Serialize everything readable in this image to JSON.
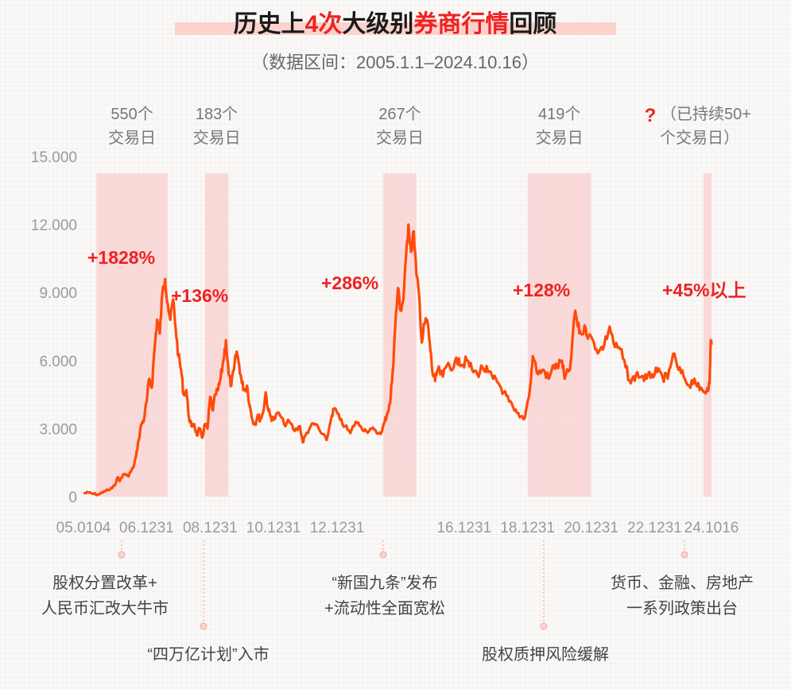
{
  "title": {
    "prefix": "历史上",
    "count": "4次",
    "middle": "大级别",
    "highlight": "券商行情",
    "suffix": "回顾"
  },
  "subtitle": "（数据区间：2005.1.1–2024.10.16）",
  "colors": {
    "line": "#ff4a0a",
    "shade": "#f9cfcf",
    "accent": "#ee2222",
    "title_underline": "#fbd3cc"
  },
  "chart_data": {
    "type": "line",
    "ylim": [
      0,
      15000
    ],
    "yticks": [
      0,
      3000,
      6000,
      9000,
      12000,
      15000
    ],
    "ytick_labels": [
      "0",
      "3.000",
      "6.000",
      "9.000",
      "12.000",
      "15.000"
    ],
    "xlim": [
      "2005-01-04",
      "2024-10-16"
    ],
    "xticks": [
      "2005-01-04",
      "2006-12-31",
      "2008-12-31",
      "2010-12-31",
      "2012-12-31",
      "2014-12-31",
      "2016-12-31",
      "2018-12-31",
      "2020-12-31",
      "2022-12-31",
      "2024-10-16"
    ],
    "xtick_labels": [
      "05.0104",
      "06.1231",
      "08.1231",
      "10.1231",
      "12.1231",
      "16.1231",
      "18.1231",
      "20.1231",
      "22.1231",
      "24.1016"
    ],
    "xtick_label_dates": [
      "2005-01-04",
      "2006-12-31",
      "2008-12-31",
      "2010-12-31",
      "2012-12-31",
      "2016-12-31",
      "2018-12-31",
      "2020-12-31",
      "2022-12-31",
      "2024-10-16"
    ],
    "series": [
      {
        "points": [
          [
            "2005-01-04",
            150
          ],
          [
            "2005-03-01",
            180
          ],
          [
            "2005-05-01",
            120
          ],
          [
            "2005-07-01",
            100
          ],
          [
            "2005-09-01",
            250
          ],
          [
            "2005-11-01",
            300
          ],
          [
            "2006-01-01",
            500
          ],
          [
            "2006-02-01",
            850
          ],
          [
            "2006-03-01",
            700
          ],
          [
            "2006-04-01",
            950
          ],
          [
            "2006-05-01",
            1000
          ],
          [
            "2006-06-01",
            900
          ],
          [
            "2006-07-01",
            1100
          ],
          [
            "2006-08-01",
            1300
          ],
          [
            "2006-09-01",
            1800
          ],
          [
            "2006-10-01",
            2500
          ],
          [
            "2006-11-01",
            3200
          ],
          [
            "2006-12-01",
            3400
          ],
          [
            "2007-01-01",
            4200
          ],
          [
            "2007-02-01",
            5200
          ],
          [
            "2007-03-01",
            4800
          ],
          [
            "2007-04-01",
            6500
          ],
          [
            "2007-05-01",
            7800
          ],
          [
            "2007-06-01",
            7200
          ],
          [
            "2007-07-01",
            9000
          ],
          [
            "2007-08-01",
            9600
          ],
          [
            "2007-09-01",
            8500
          ],
          [
            "2007-10-01",
            7800
          ],
          [
            "2007-11-01",
            8700
          ],
          [
            "2007-12-01",
            7400
          ],
          [
            "2008-01-01",
            6200
          ],
          [
            "2008-02-01",
            5600
          ],
          [
            "2008-03-01",
            4500
          ],
          [
            "2008-04-01",
            4700
          ],
          [
            "2008-05-01",
            3500
          ],
          [
            "2008-06-01",
            3100
          ],
          [
            "2008-07-01",
            3200
          ],
          [
            "2008-08-01",
            2700
          ],
          [
            "2008-09-01",
            3000
          ],
          [
            "2008-10-01",
            2600
          ],
          [
            "2008-11-01",
            3200
          ],
          [
            "2008-12-01",
            3000
          ],
          [
            "2009-01-01",
            4400
          ],
          [
            "2009-02-01",
            3800
          ],
          [
            "2009-03-01",
            4500
          ],
          [
            "2009-04-01",
            4700
          ],
          [
            "2009-05-01",
            5200
          ],
          [
            "2009-06-01",
            6000
          ],
          [
            "2009-07-01",
            6900
          ],
          [
            "2009-08-01",
            5400
          ],
          [
            "2009-09-01",
            4900
          ],
          [
            "2009-10-01",
            5600
          ],
          [
            "2009-11-01",
            6400
          ],
          [
            "2009-12-01",
            5800
          ],
          [
            "2010-01-01",
            5000
          ],
          [
            "2010-02-01",
            4700
          ],
          [
            "2010-03-01",
            4900
          ],
          [
            "2010-04-01",
            4000
          ],
          [
            "2010-05-01",
            3400
          ],
          [
            "2010-06-01",
            3200
          ],
          [
            "2010-07-01",
            3600
          ],
          [
            "2010-08-01",
            3400
          ],
          [
            "2010-09-01",
            3700
          ],
          [
            "2010-10-01",
            4600
          ],
          [
            "2010-11-01",
            3800
          ],
          [
            "2010-12-01",
            3500
          ],
          [
            "2011-01-01",
            3400
          ],
          [
            "2011-03-01",
            3700
          ],
          [
            "2011-05-01",
            3200
          ],
          [
            "2011-07-01",
            3300
          ],
          [
            "2011-09-01",
            2900
          ],
          [
            "2011-11-01",
            3100
          ],
          [
            "2011-12-01",
            2400
          ],
          [
            "2012-01-01",
            2700
          ],
          [
            "2012-03-01",
            3100
          ],
          [
            "2012-05-01",
            3200
          ],
          [
            "2012-07-01",
            2800
          ],
          [
            "2012-09-01",
            2500
          ],
          [
            "2012-11-01",
            3600
          ],
          [
            "2012-12-01",
            3900
          ],
          [
            "2013-02-01",
            3400
          ],
          [
            "2013-04-01",
            3100
          ],
          [
            "2013-06-01",
            2800
          ],
          [
            "2013-08-01",
            3300
          ],
          [
            "2013-10-01",
            3100
          ],
          [
            "2013-12-01",
            2900
          ],
          [
            "2014-02-01",
            3000
          ],
          [
            "2014-04-01",
            2800
          ],
          [
            "2014-06-01",
            2900
          ],
          [
            "2014-07-01",
            3300
          ],
          [
            "2014-08-01",
            3700
          ],
          [
            "2014-09-01",
            4100
          ],
          [
            "2014-10-01",
            5500
          ],
          [
            "2014-11-01",
            7600
          ],
          [
            "2014-12-01",
            9200
          ],
          [
            "2015-01-01",
            8200
          ],
          [
            "2015-02-01",
            8700
          ],
          [
            "2015-03-01",
            10400
          ],
          [
            "2015-04-01",
            12000
          ],
          [
            "2015-05-01",
            10800
          ],
          [
            "2015-06-01",
            11700
          ],
          [
            "2015-07-01",
            9800
          ],
          [
            "2015-08-01",
            8900
          ],
          [
            "2015-09-01",
            6800
          ],
          [
            "2015-10-01",
            7600
          ],
          [
            "2015-11-01",
            7800
          ],
          [
            "2015-12-01",
            6800
          ],
          [
            "2016-01-01",
            5500
          ],
          [
            "2016-02-01",
            5100
          ],
          [
            "2016-03-01",
            5600
          ],
          [
            "2016-05-01",
            5300
          ],
          [
            "2016-07-01",
            5900
          ],
          [
            "2016-09-01",
            5700
          ],
          [
            "2016-11-01",
            6100
          ],
          [
            "2016-12-01",
            5800
          ],
          [
            "2017-02-01",
            6000
          ],
          [
            "2017-04-01",
            5600
          ],
          [
            "2017-06-01",
            5400
          ],
          [
            "2017-08-01",
            5700
          ],
          [
            "2017-10-01",
            5500
          ],
          [
            "2017-12-01",
            5200
          ],
          [
            "2018-02-01",
            5000
          ],
          [
            "2018-04-01",
            4600
          ],
          [
            "2018-06-01",
            4200
          ],
          [
            "2018-08-01",
            3800
          ],
          [
            "2018-10-01",
            3500
          ],
          [
            "2018-12-01",
            3500
          ],
          [
            "2019-02-01",
            4900
          ],
          [
            "2019-03-01",
            6200
          ],
          [
            "2019-05-01",
            5400
          ],
          [
            "2019-07-01",
            5600
          ],
          [
            "2019-09-01",
            5200
          ],
          [
            "2019-11-01",
            5800
          ],
          [
            "2019-12-01",
            5700
          ],
          [
            "2020-02-01",
            6000
          ],
          [
            "2020-03-01",
            5200
          ],
          [
            "2020-05-01",
            5600
          ],
          [
            "2020-07-01",
            8200
          ],
          [
            "2020-08-01",
            7500
          ],
          [
            "2020-09-01",
            7200
          ],
          [
            "2020-11-01",
            7400
          ],
          [
            "2020-12-01",
            7100
          ],
          [
            "2021-02-01",
            6800
          ],
          [
            "2021-04-01",
            6400
          ],
          [
            "2021-06-01",
            6700
          ],
          [
            "2021-08-01",
            7500
          ],
          [
            "2021-10-01",
            6600
          ],
          [
            "2021-12-01",
            6500
          ],
          [
            "2022-02-01",
            5700
          ],
          [
            "2022-04-01",
            5000
          ],
          [
            "2022-06-01",
            5400
          ],
          [
            "2022-08-01",
            5300
          ],
          [
            "2022-10-01",
            5200
          ],
          [
            "2022-12-01",
            5400
          ],
          [
            "2023-02-01",
            5500
          ],
          [
            "2023-04-01",
            5300
          ],
          [
            "2023-06-01",
            5200
          ],
          [
            "2023-08-01",
            6300
          ],
          [
            "2023-10-01",
            5600
          ],
          [
            "2023-12-01",
            5300
          ],
          [
            "2024-02-01",
            4900
          ],
          [
            "2024-04-01",
            5200
          ],
          [
            "2024-06-01",
            4700
          ],
          [
            "2024-08-01",
            4600
          ],
          [
            "2024-09-01",
            4800
          ],
          [
            "2024-09-24",
            5000
          ],
          [
            "2024-10-08",
            6900
          ],
          [
            "2024-10-16",
            6700
          ]
        ]
      }
    ],
    "periods": [
      {
        "start": "2005-06-01",
        "end": "2007-08-31",
        "days_line1": "550个",
        "days_line2": "交易日",
        "gain": "+1828%",
        "gain_value": 9000
      },
      {
        "start": "2008-11-01",
        "end": "2009-07-31",
        "days_line1": "183个",
        "days_line2": "交易日",
        "gain": "+136%",
        "gain_value": 8800
      },
      {
        "start": "2014-06-15",
        "end": "2015-06-30",
        "days_line1": "267个",
        "days_line2": "交易日",
        "gain": "+286%",
        "gain_value": 9300
      },
      {
        "start": "2019-01-01",
        "end": "2020-12-31",
        "days_line1": "419个",
        "days_line2": "交易日",
        "gain": "+128%",
        "gain_value": 9000
      },
      {
        "start": "2024-07-15",
        "end": "2024-10-16",
        "days_line1": "（已持续50+",
        "days_line2": "个交易日）",
        "question_mark": "?",
        "gain": "+45%以上",
        "gain_value": 9000
      }
    ],
    "events": [
      {
        "date": "2006-03-01",
        "lines": [
          "股权分置改革+",
          "人民币汇改大牛市"
        ],
        "tier": 1
      },
      {
        "date": "2008-11-15",
        "lines": [
          "“四万亿计划”入市"
        ],
        "tier": 2
      },
      {
        "date": "2014-06-15",
        "lines": [
          "“新国九条”发布",
          "+流动性全面宽松"
        ],
        "tier": 1
      },
      {
        "date": "2018-10-20",
        "lines": [
          "股权质押风险缓解"
        ],
        "tier": 2
      },
      {
        "date": "2024-09-24",
        "lines": [
          "货币、金融、房地产",
          "一系列政策出台"
        ],
        "tier": 1
      }
    ]
  }
}
